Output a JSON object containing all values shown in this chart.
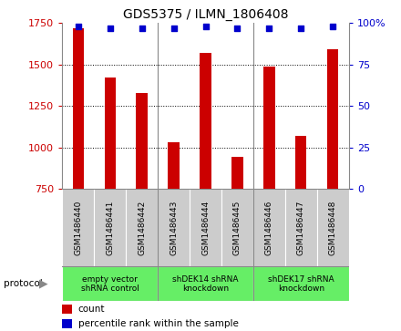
{
  "title": "GDS5375 / ILMN_1806408",
  "samples": [
    "GSM1486440",
    "GSM1486441",
    "GSM1486442",
    "GSM1486443",
    "GSM1486444",
    "GSM1486445",
    "GSM1486446",
    "GSM1486447",
    "GSM1486448"
  ],
  "counts": [
    1720,
    1420,
    1330,
    1030,
    1570,
    940,
    1490,
    1070,
    1590
  ],
  "percentile_ranks": [
    98,
    97,
    97,
    97,
    98,
    97,
    97,
    97,
    98
  ],
  "ylim_left": [
    750,
    1750
  ],
  "ylim_right": [
    0,
    100
  ],
  "yticks_left": [
    750,
    1000,
    1250,
    1500,
    1750
  ],
  "yticks_right": [
    0,
    25,
    50,
    75,
    100
  ],
  "bar_color": "#cc0000",
  "dot_color": "#0000cc",
  "bar_width": 0.35,
  "groups": [
    {
      "label": "empty vector\nshRNA control",
      "start": 0,
      "end": 2
    },
    {
      "label": "shDEK14 shRNA\nknockdown",
      "start": 3,
      "end": 5
    },
    {
      "label": "shDEK17 shRNA\nknockdown",
      "start": 6,
      "end": 8
    }
  ],
  "protocol_label": "protocol",
  "legend_count_label": "count",
  "legend_percentile_label": "percentile rank within the sample",
  "background_color": "#ffffff",
  "tick_color_left": "#cc0000",
  "tick_color_right": "#0000cc",
  "panel_bg": "#cccccc",
  "group_bg": "#66ee66",
  "sep_color": "#888888",
  "grid_color": "black"
}
